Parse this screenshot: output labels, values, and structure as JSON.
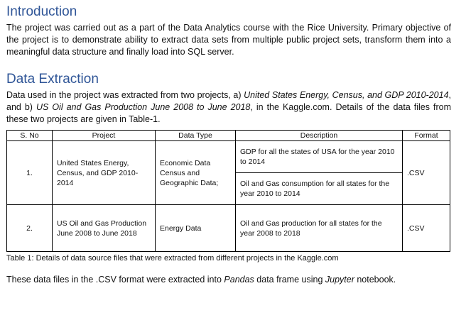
{
  "introduction": {
    "heading": "Introduction",
    "paragraph": "The project was carried out as a part of the Data Analytics course with the Rice University. Primary objective of the project is to demonstrate ability to extract data sets from multiple public project sets, transform them into a meaningful data structure and finally load into SQL server."
  },
  "data_extraction": {
    "heading": "Data Extraction",
    "p_part1": "Data used in the project was extracted from two projects, a) ",
    "p_italic1": "United States Energy, Census, and GDP 2010-2014",
    "p_part2": ", and b) ",
    "p_italic2": "US Oil and Gas Production June 2008 to June 2018",
    "p_part3": ", in the Kaggle.com. Details of the data files from these two projects are given in Table-1."
  },
  "table": {
    "headers": [
      "S. No",
      "Project",
      "Data Type",
      "Description",
      "Format"
    ],
    "rows": [
      {
        "sno": "1.",
        "project": "United States Energy, Census, and GDP 2010-2014",
        "data_type": "Economic Data Census and Geographic Data;",
        "descriptions": [
          "GDP for all the states of USA for the year 2010 to 2014",
          "Oil and Gas consumption for all states for the year 2010 to 2014"
        ],
        "format": ".CSV"
      },
      {
        "sno": "2.",
        "project": "US Oil and Gas Production June 2008 to June 2018",
        "data_type": "Energy Data",
        "descriptions": [
          "Oil and Gas production for all states for the year 2008 to 2018"
        ],
        "format": ".CSV"
      }
    ],
    "caption": "Table 1: Details of data source files that were extracted from different projects in the Kaggle.com"
  },
  "outro": {
    "part1": "These data files in the .CSV format were extracted into ",
    "italic1": "Pandas",
    "part2": " data frame using ",
    "italic2": "Jupyter",
    "part3": " notebook."
  }
}
